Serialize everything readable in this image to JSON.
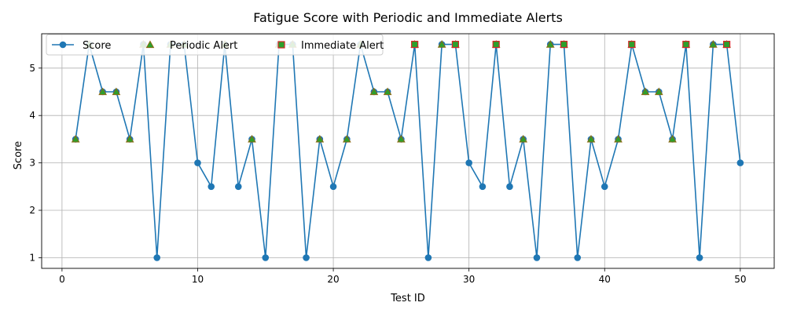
{
  "chart_data": {
    "type": "line",
    "title": "Fatigue Score with Periodic and Immediate Alerts",
    "xlabel": "Test ID",
    "ylabel": "Score",
    "xlim": [
      -1.5,
      52.5
    ],
    "ylim": [
      0.775,
      5.725
    ],
    "xticks": [
      0,
      10,
      20,
      30,
      40,
      50
    ],
    "yticks": [
      1,
      2,
      3,
      4,
      5
    ],
    "grid": true,
    "legend_position": "top-left",
    "series": [
      {
        "name": "Score",
        "color": "#1f77b4",
        "marker": "circle",
        "x": [
          1,
          2,
          3,
          4,
          5,
          6,
          7,
          8,
          9,
          10,
          11,
          12,
          13,
          14,
          15,
          16,
          17,
          18,
          19,
          20,
          21,
          22,
          23,
          24,
          25,
          26,
          27,
          28,
          29,
          30,
          31,
          32,
          33,
          34,
          35,
          36,
          37,
          38,
          39,
          40,
          41,
          42,
          43,
          44,
          45,
          46,
          47,
          48,
          49,
          50
        ],
        "values": [
          3.5,
          5.5,
          4.5,
          4.5,
          3.5,
          5.5,
          1,
          5.5,
          5.5,
          3,
          2.5,
          5.5,
          2.5,
          3.5,
          1,
          5.5,
          5.5,
          1,
          3.5,
          2.5,
          3.5,
          5.5,
          4.5,
          4.5,
          3.5,
          5.5,
          1,
          5.5,
          5.5,
          3,
          2.5,
          5.5,
          2.5,
          3.5,
          1,
          5.5,
          5.5,
          1,
          3.5,
          2.5,
          3.5,
          5.5,
          4.5,
          4.5,
          3.5,
          5.5,
          1,
          5.5,
          5.5,
          3
        ]
      },
      {
        "name": "Periodic Alert",
        "color": "#2ca02c",
        "edge_color": "#8b6914",
        "marker": "triangle",
        "x": [
          1,
          2,
          3,
          4,
          5,
          6,
          8,
          9,
          12,
          14,
          16,
          17,
          19,
          21,
          22,
          23,
          24,
          25,
          26,
          28,
          29,
          32,
          34,
          36,
          37,
          39,
          41,
          42,
          43,
          44,
          45,
          46,
          48,
          49
        ],
        "values": [
          3.5,
          5.5,
          4.5,
          4.5,
          3.5,
          5.5,
          5.5,
          5.5,
          5.5,
          3.5,
          5.5,
          5.5,
          3.5,
          3.5,
          5.5,
          4.5,
          4.5,
          3.5,
          5.5,
          5.5,
          5.5,
          5.5,
          3.5,
          5.5,
          5.5,
          3.5,
          3.5,
          5.5,
          4.5,
          4.5,
          3.5,
          5.5,
          5.5,
          5.5
        ]
      },
      {
        "name": "Immediate Alert",
        "color": "#2ca02c",
        "edge_color": "#d62728",
        "marker": "square",
        "x": [
          26,
          29,
          32,
          37,
          42,
          46,
          49
        ],
        "values": [
          5.5,
          5.5,
          5.5,
          5.5,
          5.5,
          5.5,
          5.5
        ]
      }
    ]
  }
}
